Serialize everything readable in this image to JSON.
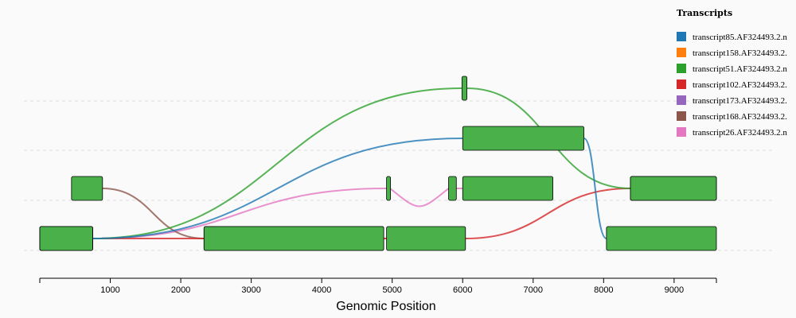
{
  "chart_data": {
    "type": "sashimi",
    "xlabel": "Genomic Position",
    "xlim": [
      0,
      9600
    ],
    "ticks": [
      1000,
      2000,
      3000,
      4000,
      5000,
      6000,
      7000,
      8000,
      9000
    ],
    "grid": true,
    "exon_color": "#4ab04a",
    "legend": {
      "title": "Transcripts",
      "placement": "top-right"
    },
    "transcripts": [
      {
        "name": "transcript85.AF324493.2.n",
        "color": "#1f77b4",
        "track": 2,
        "exons": [
          [
            0,
            750
          ],
          [
            6000,
            7720
          ],
          [
            8040,
            9600
          ]
        ]
      },
      {
        "name": "transcript158.AF324493.2.",
        "color": "#ff7f0e",
        "track": 0,
        "exons": []
      },
      {
        "name": "transcript51.AF324493.2.n",
        "color": "#2ca02c",
        "track": 3,
        "exons": [
          [
            0,
            750
          ],
          [
            5990,
            6060
          ],
          [
            8380,
            9600
          ]
        ]
      },
      {
        "name": "transcript102.AF324493.2.",
        "color": "#d62728",
        "track": 0,
        "exons": [
          [
            0,
            750
          ],
          [
            2330,
            4880
          ],
          [
            4920,
            6040
          ],
          [
            8380,
            9600
          ]
        ]
      },
      {
        "name": "transcript173.AF324493.2.",
        "color": "#9467bd",
        "track": 0,
        "exons": []
      },
      {
        "name": "transcript168.AF324493.2.",
        "color": "#8c564b",
        "track": 1,
        "exons": [
          [
            450,
            890
          ],
          [
            2330,
            4880
          ]
        ]
      },
      {
        "name": "transcript26.AF324493.2.n",
        "color": "#e377c2",
        "track": 1,
        "exons": [
          [
            0,
            750
          ],
          [
            4920,
            4970
          ],
          [
            5800,
            5910
          ],
          [
            6000,
            7280
          ]
        ]
      }
    ]
  }
}
